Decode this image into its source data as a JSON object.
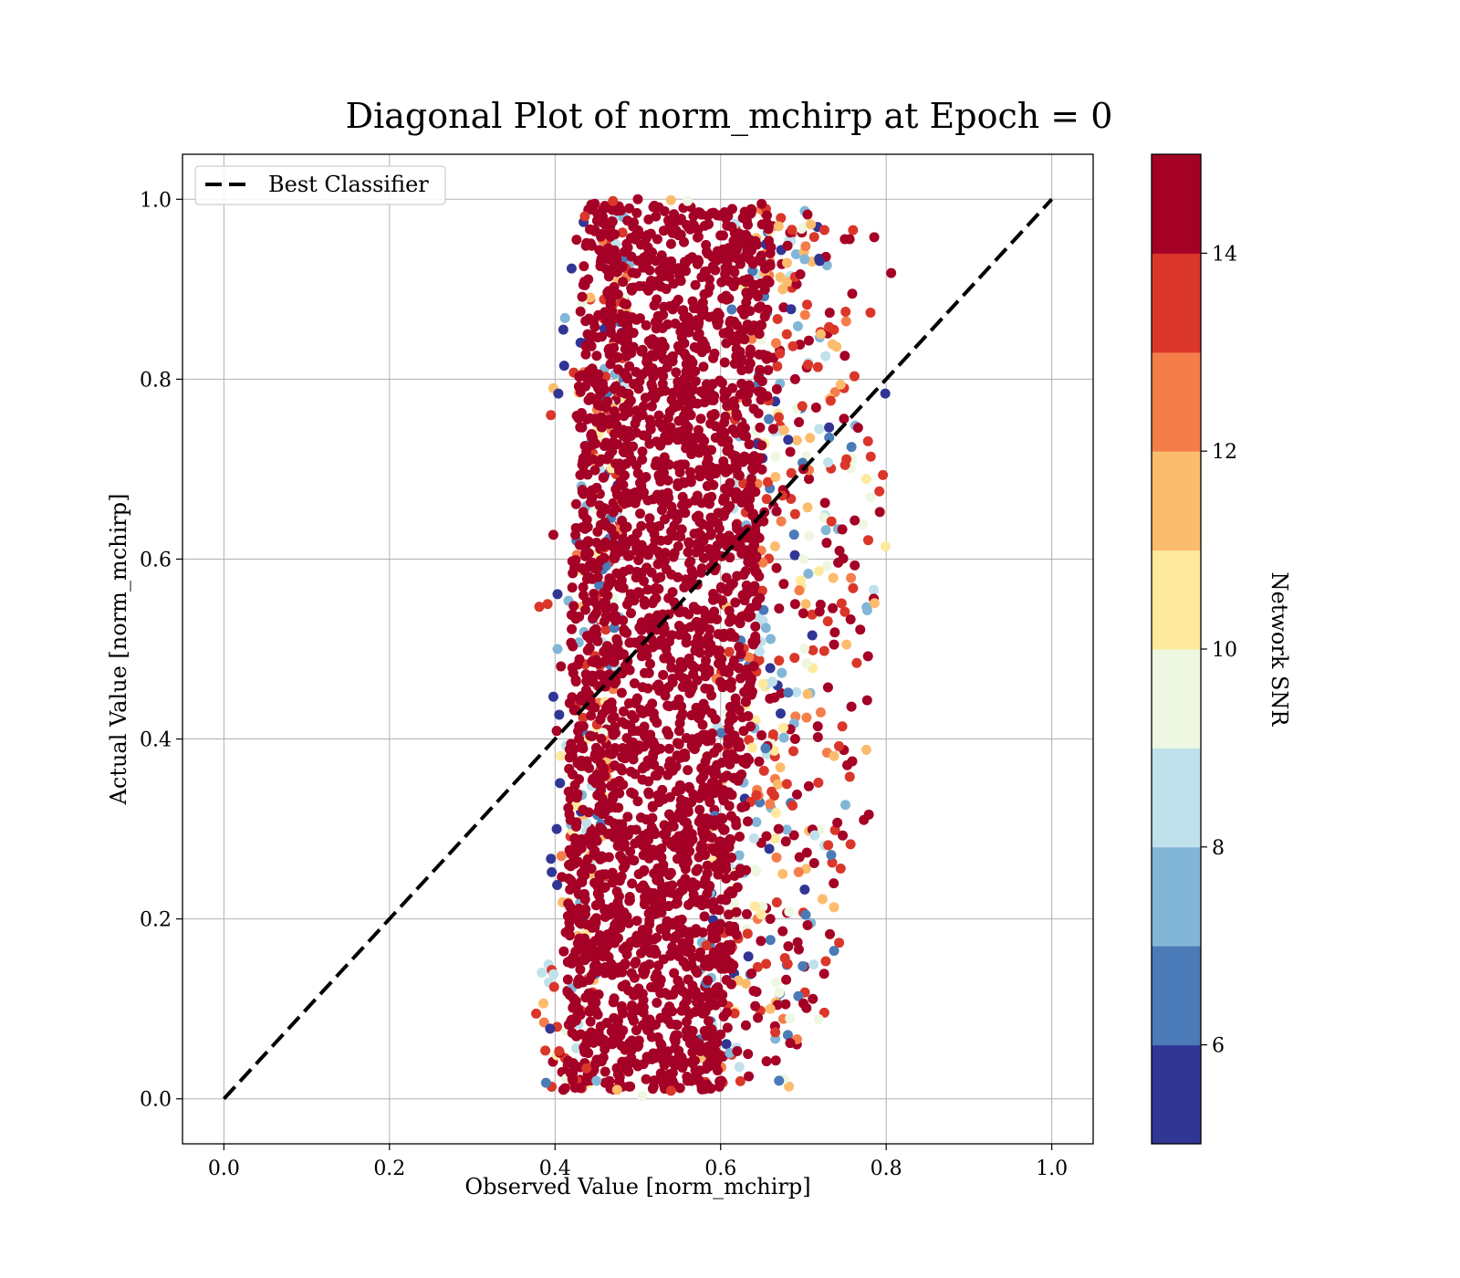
{
  "chart_data": {
    "type": "scatter",
    "title": "Diagonal Plot of norm_mchirp at Epoch = 0",
    "xlabel": "Observed Value [norm_mchirp]",
    "ylabel": "Actual Value [norm_mchirp]",
    "xlim": [
      -0.05,
      1.05
    ],
    "ylim": [
      -0.05,
      1.05
    ],
    "xticks": [
      0.0,
      0.2,
      0.4,
      0.6,
      0.8,
      1.0
    ],
    "yticks": [
      0.0,
      0.2,
      0.4,
      0.6,
      0.8,
      1.0
    ],
    "xtick_labels": [
      "0.0",
      "0.2",
      "0.4",
      "0.6",
      "0.8",
      "1.0"
    ],
    "ytick_labels": [
      "0.0",
      "0.2",
      "0.4",
      "0.6",
      "0.8",
      "1.0"
    ],
    "grid": true,
    "legend": {
      "placement": "upper-left",
      "entries": [
        {
          "label": "Best Classifier",
          "style": "dashed",
          "color": "#000000"
        }
      ]
    },
    "reference_line": {
      "name": "Best Classifier",
      "x": [
        0.0,
        1.0
      ],
      "y": [
        0.0,
        1.0
      ],
      "style": "dashed",
      "color": "#000000"
    },
    "colorbar": {
      "label": "Network SNR",
      "range": [
        5,
        15
      ],
      "ticks": [
        6,
        8,
        10,
        12,
        14
      ],
      "tick_labels": [
        "6",
        "8",
        "10",
        "12",
        "14"
      ],
      "colors": [
        "#313695",
        "#4a7ab7",
        "#82b6d6",
        "#bfe1ec",
        "#eef7e1",
        "#fee99d",
        "#fcbc6d",
        "#f47d4a",
        "#da362a",
        "#a50026"
      ]
    },
    "scatter_summary": {
      "dense_core": {
        "x_range": [
          0.43,
          0.65
        ],
        "y_range": [
          0.01,
          1.0
        ],
        "color_value": 15
      },
      "scatter_x_range": [
        0.38,
        0.81
      ],
      "scatter_y_range": [
        0.0,
        1.0
      ]
    },
    "points": [
      [
        0.806,
        0.918,
        15
      ],
      [
        0.781,
        0.874,
        13
      ],
      [
        0.778,
        0.731,
        13
      ],
      [
        0.776,
        0.689,
        10
      ],
      [
        0.786,
        0.551,
        11
      ],
      [
        0.778,
        0.492,
        15
      ],
      [
        0.777,
        0.443,
        15
      ],
      [
        0.776,
        0.388,
        11
      ],
      [
        0.779,
        0.316,
        15
      ],
      [
        0.773,
        0.31,
        15
      ],
      [
        0.757,
        0.283,
        13
      ],
      [
        0.745,
        0.256,
        13
      ],
      [
        0.737,
        0.213,
        11
      ],
      [
        0.732,
        0.183,
        15
      ],
      [
        0.727,
        0.153,
        13
      ],
      [
        0.725,
        0.139,
        15
      ],
      [
        0.7,
        0.106,
        15
      ],
      [
        0.684,
        0.062,
        15
      ],
      [
        0.666,
        0.074,
        13
      ],
      [
        0.634,
        0.025,
        15
      ],
      [
        0.611,
        0.051,
        7
      ],
      [
        0.62,
        0.053,
        15
      ],
      [
        0.713,
        0.958,
        13
      ],
      [
        0.709,
        0.972,
        11
      ],
      [
        0.705,
        0.983,
        15
      ],
      [
        0.684,
        0.963,
        15
      ],
      [
        0.686,
        0.966,
        13
      ],
      [
        0.67,
        0.97,
        11
      ],
      [
        0.656,
        0.982,
        15
      ],
      [
        0.637,
        0.989,
        15
      ],
      [
        0.759,
        0.895,
        15
      ],
      [
        0.751,
        0.875,
        13
      ],
      [
        0.74,
        0.836,
        11
      ],
      [
        0.721,
        0.85,
        11
      ],
      [
        0.731,
        0.858,
        13
      ],
      [
        0.75,
        0.826,
        15
      ],
      [
        0.745,
        0.794,
        11
      ],
      [
        0.733,
        0.776,
        13
      ],
      [
        0.752,
        0.711,
        13
      ],
      [
        0.766,
        0.746,
        15
      ],
      [
        0.749,
        0.756,
        15
      ],
      [
        0.762,
        0.643,
        15
      ],
      [
        0.747,
        0.633,
        15
      ],
      [
        0.742,
        0.596,
        15
      ],
      [
        0.736,
        0.579,
        11
      ],
      [
        0.762,
        0.593,
        15
      ],
      [
        0.757,
        0.533,
        15
      ],
      [
        0.752,
        0.505,
        11
      ],
      [
        0.737,
        0.505,
        15
      ],
      [
        0.758,
        0.436,
        15
      ],
      [
        0.747,
        0.414,
        13
      ],
      [
        0.743,
        0.392,
        13
      ],
      [
        0.737,
        0.381,
        11
      ],
      [
        0.756,
        0.358,
        13
      ],
      [
        0.741,
        0.307,
        15
      ],
      [
        0.73,
        0.282,
        13
      ],
      [
        0.713,
        0.262,
        15
      ],
      [
        0.723,
        0.222,
        11
      ],
      [
        0.705,
        0.193,
        15
      ],
      [
        0.693,
        0.174,
        15
      ],
      [
        0.681,
        0.15,
        13
      ],
      [
        0.671,
        0.118,
        9
      ],
      [
        0.66,
        0.1,
        11
      ],
      [
        0.645,
        0.09,
        15
      ],
      [
        0.391,
        0.55,
        13
      ],
      [
        0.381,
        0.547,
        13
      ],
      [
        0.398,
        0.627,
        15
      ],
      [
        0.403,
        0.561,
        5
      ],
      [
        0.403,
        0.5,
        7
      ],
      [
        0.398,
        0.447,
        5
      ],
      [
        0.402,
        0.409,
        15
      ],
      [
        0.405,
        0.427,
        5
      ],
      [
        0.406,
        0.351,
        5
      ],
      [
        0.402,
        0.3,
        5
      ],
      [
        0.396,
        0.252,
        5
      ],
      [
        0.386,
        0.106,
        11
      ],
      [
        0.394,
        0.078,
        5
      ],
      [
        0.405,
        0.053,
        13
      ],
      [
        0.41,
        0.01,
        15
      ],
      [
        0.395,
        0.76,
        13
      ],
      [
        0.398,
        0.79,
        11
      ],
      [
        0.404,
        0.784,
        5
      ],
      [
        0.41,
        0.855,
        5
      ],
      [
        0.412,
        0.868,
        7
      ],
      [
        0.411,
        0.815,
        5
      ],
      [
        0.42,
        0.923,
        5
      ],
      [
        0.426,
        0.955,
        15
      ],
      [
        0.436,
        0.981,
        13
      ],
      [
        0.448,
        0.995,
        15
      ],
      [
        0.47,
        0.998,
        13
      ],
      [
        0.5,
        1.0,
        15
      ],
      [
        0.54,
        0.999,
        11
      ],
      [
        0.56,
        0.998,
        9
      ],
      [
        0.575,
        0.985,
        15
      ],
      [
        0.56,
        0.02,
        15
      ],
      [
        0.54,
        0.009,
        13
      ],
      [
        0.505,
        0.003,
        9
      ],
      [
        0.475,
        0.01,
        11
      ],
      [
        0.45,
        0.02,
        7
      ],
      [
        0.438,
        0.034,
        13
      ],
      [
        0.7,
        0.7,
        15
      ],
      [
        0.69,
        0.65,
        13
      ],
      [
        0.7,
        0.6,
        9
      ],
      [
        0.69,
        0.55,
        15
      ],
      [
        0.705,
        0.45,
        11
      ],
      [
        0.69,
        0.4,
        15
      ],
      [
        0.68,
        0.35,
        13
      ],
      [
        0.67,
        0.3,
        15
      ],
      [
        0.675,
        0.25,
        11
      ],
      [
        0.66,
        0.2,
        15
      ],
      [
        0.655,
        0.15,
        13
      ],
      [
        0.64,
        0.12,
        15
      ],
      [
        0.69,
        0.8,
        15
      ],
      [
        0.68,
        0.85,
        13
      ],
      [
        0.675,
        0.9,
        11
      ],
      [
        0.66,
        0.94,
        15
      ]
    ]
  }
}
